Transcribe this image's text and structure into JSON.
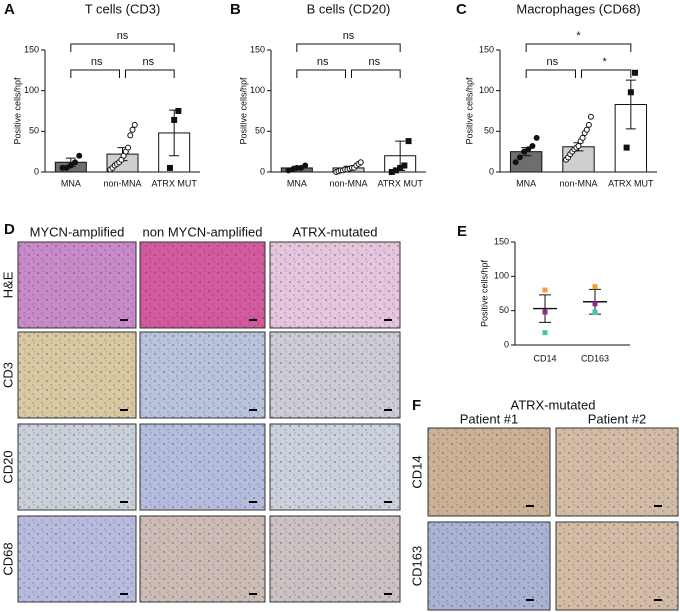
{
  "chart_data": [
    {
      "type": "bar",
      "panel_label": "A",
      "title": "T cells (CD3)",
      "y_label": "Positive cells/hpf",
      "categories": [
        "MNA",
        "non-MNA",
        "ATRX MUT"
      ],
      "values": [
        12,
        22,
        48
      ],
      "errors": [
        5,
        8,
        28
      ],
      "points": [
        [
          5,
          5,
          8,
          12,
          20
        ],
        [
          3,
          5,
          8,
          10,
          12,
          15,
          20,
          25,
          30,
          45,
          52,
          58
        ],
        [
          5,
          64,
          75
        ]
      ],
      "colors": [
        "#6e6e6e",
        "#cfcfcf",
        "#ffffff"
      ],
      "ylim": [
        0,
        150
      ],
      "yticks": [
        0,
        50,
        100,
        150
      ],
      "comparisons": [
        {
          "from": 0,
          "to": 1,
          "label": "ns"
        },
        {
          "from": 1,
          "to": 2,
          "label": "ns"
        },
        {
          "from": 0,
          "to": 2,
          "label": "ns"
        }
      ]
    },
    {
      "type": "bar",
      "panel_label": "B",
      "title": "B cells (CD20)",
      "y_label": "Positive cells/hpf",
      "categories": [
        "MNA",
        "non-MNA",
        "ATRX MUT"
      ],
      "values": [
        5,
        5,
        20
      ],
      "errors": [
        2,
        2,
        18
      ],
      "points": [
        [
          2,
          3,
          5,
          5,
          8
        ],
        [
          0,
          1,
          2,
          2,
          3,
          3,
          4,
          5,
          5,
          8,
          10,
          12
        ],
        [
          0,
          2,
          5,
          8,
          38
        ]
      ],
      "colors": [
        "#6e6e6e",
        "#cfcfcf",
        "#ffffff"
      ],
      "ylim": [
        0,
        150
      ],
      "yticks": [
        0,
        50,
        100,
        150
      ],
      "comparisons": [
        {
          "from": 0,
          "to": 1,
          "label": "ns"
        },
        {
          "from": 1,
          "to": 2,
          "label": "ns"
        },
        {
          "from": 0,
          "to": 2,
          "label": "ns"
        }
      ]
    },
    {
      "type": "bar",
      "panel_label": "C",
      "title": "Macrophages (CD68)",
      "y_label": "Positive cells/hpf",
      "categories": [
        "MNA",
        "non-MNA",
        "ATRX MUT"
      ],
      "values": [
        25,
        31,
        83
      ],
      "errors": [
        5,
        5,
        30
      ],
      "points": [
        [
          12,
          18,
          25,
          28,
          32,
          42
        ],
        [
          15,
          18,
          22,
          25,
          28,
          30,
          32,
          38,
          42,
          48,
          52,
          58,
          68
        ],
        [
          30,
          98,
          122
        ]
      ],
      "colors": [
        "#6e6e6e",
        "#cfcfcf",
        "#ffffff"
      ],
      "ylim": [
        0,
        150
      ],
      "yticks": [
        0,
        50,
        100,
        150
      ],
      "comparisons": [
        {
          "from": 0,
          "to": 1,
          "label": "ns"
        },
        {
          "from": 1,
          "to": 2,
          "label": "*"
        },
        {
          "from": 0,
          "to": 2,
          "label": "*"
        }
      ]
    },
    {
      "type": "dot",
      "panel_label": "E",
      "y_label": "Positive cells/hpf",
      "categories": [
        "CD14",
        "CD163"
      ],
      "values": [
        53,
        63
      ],
      "errors": [
        20,
        18
      ],
      "points": [
        [
          80,
          48,
          18
        ],
        [
          85,
          60,
          48
        ]
      ],
      "point_colors": [
        "#f0a030",
        "#8e2a8e",
        "#3cc8a8"
      ],
      "ylim": [
        0,
        150
      ],
      "yticks": [
        0,
        50,
        100,
        150
      ]
    }
  ],
  "panel_d": {
    "label": "D",
    "columns": [
      "MYCN-amplified",
      "non MYCN-amplified",
      "ATRX-mutated"
    ],
    "rows": [
      "H&E",
      "CD3",
      "CD20",
      "CD68"
    ]
  },
  "panel_f": {
    "label": "F",
    "title": "ATRX-mutated",
    "columns": [
      "Patient #1",
      "Patient #2"
    ],
    "rows": [
      "CD14",
      "CD163"
    ]
  }
}
